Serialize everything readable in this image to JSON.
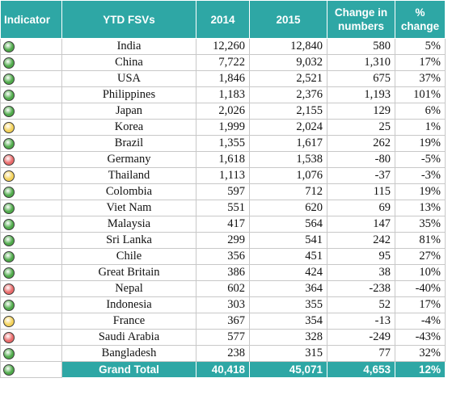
{
  "headers": {
    "indicator": "Indicator",
    "country": "YTD FSVs",
    "y2014": "2014",
    "y2015": "2015",
    "change_numbers": "Change in numbers",
    "change_percent": "% change"
  },
  "colors": {
    "green": "#4faa4a",
    "yellow": "#f4d25a",
    "red": "#ea6b6b",
    "header_bg": "#2ea7a5"
  },
  "rows": [
    {
      "indicator": "green",
      "country": "India",
      "y2014": "12,260",
      "y2015": "12,840",
      "change": "580",
      "pct": "5%"
    },
    {
      "indicator": "green",
      "country": "China",
      "y2014": "7,722",
      "y2015": "9,032",
      "change": "1,310",
      "pct": "17%"
    },
    {
      "indicator": "green",
      "country": "USA",
      "y2014": "1,846",
      "y2015": "2,521",
      "change": "675",
      "pct": "37%"
    },
    {
      "indicator": "green",
      "country": "Philippines",
      "y2014": "1,183",
      "y2015": "2,376",
      "change": "1,193",
      "pct": "101%"
    },
    {
      "indicator": "green",
      "country": "Japan",
      "y2014": "2,026",
      "y2015": "2,155",
      "change": "129",
      "pct": "6%"
    },
    {
      "indicator": "yellow",
      "country": "Korea",
      "y2014": "1,999",
      "y2015": "2,024",
      "change": "25",
      "pct": "1%"
    },
    {
      "indicator": "green",
      "country": "Brazil",
      "y2014": "1,355",
      "y2015": "1,617",
      "change": "262",
      "pct": "19%"
    },
    {
      "indicator": "red",
      "country": "Germany",
      "y2014": "1,618",
      "y2015": "1,538",
      "change": "-80",
      "pct": "-5%"
    },
    {
      "indicator": "yellow",
      "country": "Thailand",
      "y2014": "1,113",
      "y2015": "1,076",
      "change": "-37",
      "pct": "-3%"
    },
    {
      "indicator": "green",
      "country": "Colombia",
      "y2014": "597",
      "y2015": "712",
      "change": "115",
      "pct": "19%"
    },
    {
      "indicator": "green",
      "country": "Viet Nam",
      "y2014": "551",
      "y2015": "620",
      "change": "69",
      "pct": "13%"
    },
    {
      "indicator": "green",
      "country": "Malaysia",
      "y2014": "417",
      "y2015": "564",
      "change": "147",
      "pct": "35%"
    },
    {
      "indicator": "green",
      "country": "Sri Lanka",
      "y2014": "299",
      "y2015": "541",
      "change": "242",
      "pct": "81%"
    },
    {
      "indicator": "green",
      "country": "Chile",
      "y2014": "356",
      "y2015": "451",
      "change": "95",
      "pct": "27%"
    },
    {
      "indicator": "green",
      "country": "Great Britain",
      "y2014": "386",
      "y2015": "424",
      "change": "38",
      "pct": "10%"
    },
    {
      "indicator": "red",
      "country": "Nepal",
      "y2014": "602",
      "y2015": "364",
      "change": "-238",
      "pct": "-40%"
    },
    {
      "indicator": "green",
      "country": "Indonesia",
      "y2014": "303",
      "y2015": "355",
      "change": "52",
      "pct": "17%"
    },
    {
      "indicator": "yellow",
      "country": "France",
      "y2014": "367",
      "y2015": "354",
      "change": "-13",
      "pct": "-4%"
    },
    {
      "indicator": "red",
      "country": "Saudi Arabia",
      "y2014": "577",
      "y2015": "328",
      "change": "-249",
      "pct": "-43%"
    },
    {
      "indicator": "green",
      "country": "Bangladesh",
      "y2014": "238",
      "y2015": "315",
      "change": "77",
      "pct": "32%"
    }
  ],
  "total": {
    "indicator": "green",
    "label": "Grand Total",
    "y2014": "40,418",
    "y2015": "45,071",
    "change": "4,653",
    "pct": "12%"
  }
}
